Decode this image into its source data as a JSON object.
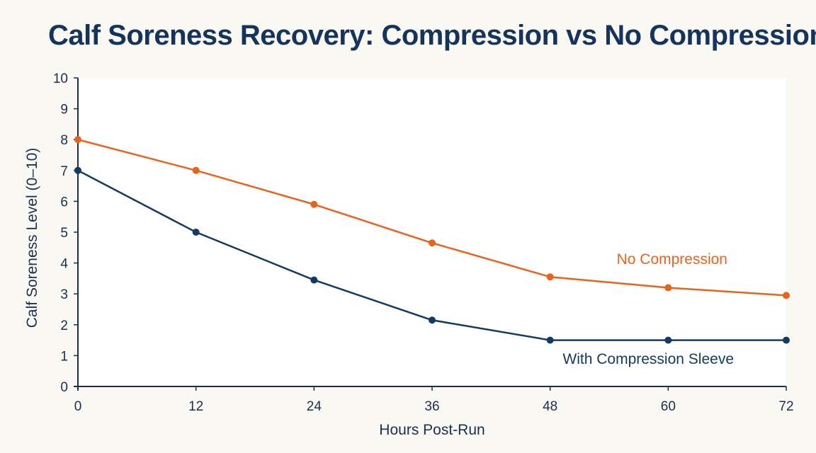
{
  "chart_data": {
    "type": "line",
    "title": "Calf Soreness Recovery: Compression vs No Compression",
    "xlabel": "Hours Post-Run",
    "ylabel": "Calf Soreness Level (0–10)",
    "x": [
      0,
      12,
      24,
      36,
      48,
      60,
      72
    ],
    "xlim": [
      0,
      72
    ],
    "ylim": [
      0,
      10
    ],
    "x_ticks": [
      "0",
      "12",
      "24",
      "36",
      "48",
      "60",
      "72"
    ],
    "y_ticks": [
      "0",
      "1",
      "2",
      "3",
      "4",
      "5",
      "6",
      "7",
      "8",
      "9",
      "10"
    ],
    "grid": false,
    "series": [
      {
        "name": "No Compression",
        "color": "#e8641e",
        "values": [
          8.0,
          7.0,
          5.9,
          4.65,
          3.55,
          3.2,
          2.95
        ]
      },
      {
        "name": "With Compression Sleeve",
        "color": "#153a62",
        "values": [
          7.0,
          5.0,
          3.45,
          2.15,
          1.5,
          1.5,
          1.5
        ]
      }
    ]
  }
}
